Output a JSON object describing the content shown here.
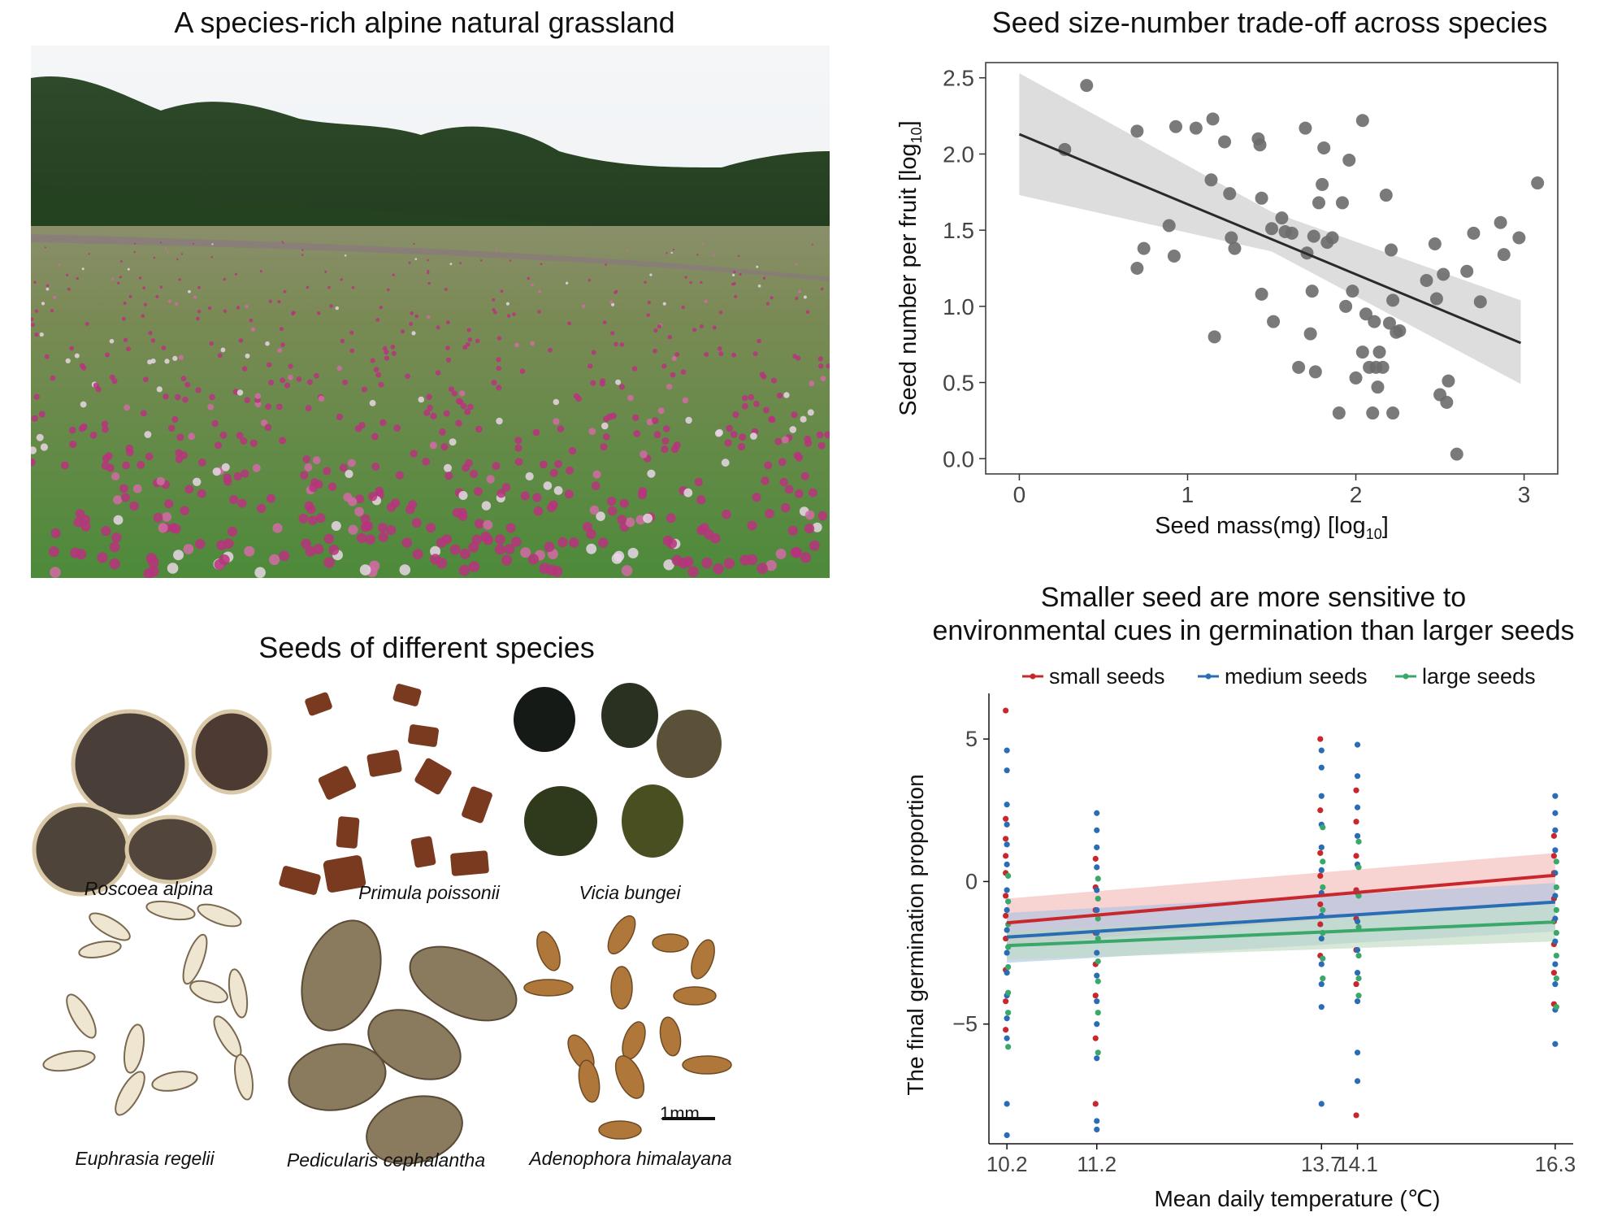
{
  "panels": {
    "grassland": {
      "title": "A species-rich alpine natural grassland"
    },
    "seeds": {
      "title": "Seeds of different species",
      "captions": [
        "Roscoea alpina",
        "Primula poissonii",
        "Vicia bungei",
        "Euphrasia regelii",
        "Pedicularis cephalantha",
        "Adenophora himalayana"
      ],
      "scale_bar_label": "1mm"
    }
  },
  "chart_data": [
    {
      "type": "scatter",
      "title": "Seed size-number trade-off across species",
      "xlabel_main": "Seed mass(mg) [log",
      "xlabel_sub": "10",
      "xlabel_end": "]",
      "ylabel_main": "Seed number per fruit [log",
      "ylabel_sub": "10",
      "ylabel_end": "]",
      "xlim": [
        -0.2,
        3.2
      ],
      "ylim": [
        -0.1,
        2.6
      ],
      "xticks": [
        0,
        1,
        2,
        3
      ],
      "xtick_labels": [
        "0",
        "1",
        "2",
        "3"
      ],
      "yticks": [
        0.0,
        0.5,
        1.0,
        1.5,
        2.0,
        2.5
      ],
      "ytick_labels": [
        "0.0",
        "0.5",
        "1.0",
        "1.5",
        "2.0",
        "2.5"
      ],
      "grid": false,
      "colors": {
        "points": "#6b6b6b",
        "fit": "#2a2a2a",
        "band": "#d9d9d9"
      },
      "fit": {
        "x0": 0.0,
        "y0": 2.13,
        "x1": 2.98,
        "y1": 0.76
      },
      "band": {
        "upper": [
          [
            0.0,
            2.53
          ],
          [
            1.5,
            1.62
          ],
          [
            2.98,
            1.04
          ]
        ],
        "lower": [
          [
            0.0,
            1.73
          ],
          [
            1.5,
            1.36
          ],
          [
            2.98,
            0.49
          ]
        ]
      },
      "points": [
        [
          0.27,
          2.03
        ],
        [
          0.4,
          2.45
        ],
        [
          0.7,
          2.15
        ],
        [
          0.7,
          1.25
        ],
        [
          0.74,
          1.38
        ],
        [
          0.89,
          1.53
        ],
        [
          0.93,
          2.18
        ],
        [
          0.92,
          1.33
        ],
        [
          1.05,
          2.17
        ],
        [
          1.15,
          2.23
        ],
        [
          1.14,
          1.83
        ],
        [
          1.16,
          0.8
        ],
        [
          1.22,
          2.08
        ],
        [
          1.25,
          1.74
        ],
        [
          1.26,
          1.45
        ],
        [
          1.28,
          1.38
        ],
        [
          1.42,
          2.1
        ],
        [
          1.43,
          2.06
        ],
        [
          1.44,
          1.71
        ],
        [
          1.44,
          1.08
        ],
        [
          1.5,
          1.51
        ],
        [
          1.51,
          0.9
        ],
        [
          1.56,
          1.58
        ],
        [
          1.58,
          1.49
        ],
        [
          1.62,
          1.48
        ],
        [
          1.66,
          0.6
        ],
        [
          1.7,
          2.17
        ],
        [
          1.71,
          1.35
        ],
        [
          1.73,
          0.82
        ],
        [
          1.74,
          1.1
        ],
        [
          1.75,
          1.46
        ],
        [
          1.76,
          0.57
        ],
        [
          1.78,
          1.68
        ],
        [
          1.8,
          1.8
        ],
        [
          1.81,
          2.04
        ],
        [
          1.83,
          1.42
        ],
        [
          1.86,
          1.45
        ],
        [
          1.9,
          0.3
        ],
        [
          1.92,
          1.68
        ],
        [
          1.94,
          1.0
        ],
        [
          1.96,
          1.96
        ],
        [
          1.98,
          1.1
        ],
        [
          2.0,
          0.53
        ],
        [
          2.04,
          2.22
        ],
        [
          2.04,
          0.7
        ],
        [
          2.06,
          0.95
        ],
        [
          2.08,
          0.6
        ],
        [
          2.1,
          0.3
        ],
        [
          2.11,
          0.9
        ],
        [
          2.12,
          0.6
        ],
        [
          2.13,
          0.47
        ],
        [
          2.14,
          0.7
        ],
        [
          2.16,
          0.6
        ],
        [
          2.18,
          1.73
        ],
        [
          2.2,
          0.89
        ],
        [
          2.21,
          1.37
        ],
        [
          2.22,
          0.3
        ],
        [
          2.22,
          1.04
        ],
        [
          2.24,
          0.83
        ],
        [
          2.26,
          0.84
        ],
        [
          2.42,
          1.17
        ],
        [
          2.47,
          1.41
        ],
        [
          2.48,
          1.05
        ],
        [
          2.5,
          0.42
        ],
        [
          2.52,
          1.21
        ],
        [
          2.54,
          0.37
        ],
        [
          2.55,
          0.51
        ],
        [
          2.6,
          0.03
        ],
        [
          2.66,
          1.23
        ],
        [
          2.7,
          1.48
        ],
        [
          2.74,
          1.03
        ],
        [
          2.86,
          1.55
        ],
        [
          2.88,
          1.34
        ],
        [
          2.97,
          1.45
        ],
        [
          3.08,
          1.81
        ]
      ]
    },
    {
      "type": "scatter",
      "title_line1": "Smaller seed are more sensitive to",
      "title_line2": "environmental cues in germination than larger seeds",
      "xlabel": "Mean daily temperature (℃)",
      "ylabel": "The final germination proportion",
      "xlim": [
        10.0,
        16.5
      ],
      "ylim": [
        -9.2,
        6.6
      ],
      "xticks": [
        10.2,
        11.2,
        13.7,
        14.1,
        16.3
      ],
      "xtick_labels": [
        "10.2",
        "11.2",
        "13.7",
        "14.1",
        "16.3"
      ],
      "yticks": [
        -5,
        0,
        5
      ],
      "ytick_labels": [
        "−5",
        "0",
        "5"
      ],
      "grid": false,
      "legend_position": "top",
      "series": [
        {
          "name": "small seeds",
          "color": "#c8282d",
          "band_color": "#f2b6b3",
          "fit": {
            "x0": 10.2,
            "y0": -1.45,
            "x1": 16.3,
            "y1": 0.22
          },
          "band": {
            "upper0": -0.6,
            "upper1": 1.0,
            "lower0": -2.25,
            "lower1": -0.65
          },
          "points": [
            [
              10.2,
              6.0
            ],
            [
              10.2,
              2.2
            ],
            [
              10.2,
              1.5
            ],
            [
              10.2,
              0.9
            ],
            [
              10.2,
              0.3
            ],
            [
              10.2,
              -0.5
            ],
            [
              10.2,
              -1.2
            ],
            [
              10.2,
              -2.0
            ],
            [
              10.2,
              -3.1
            ],
            [
              10.2,
              -4.2
            ],
            [
              10.2,
              -5.2
            ],
            [
              11.2,
              0.8
            ],
            [
              11.2,
              -0.2
            ],
            [
              11.2,
              -1.0
            ],
            [
              11.2,
              -1.8
            ],
            [
              11.2,
              -2.9
            ],
            [
              11.2,
              -4.0
            ],
            [
              11.2,
              -5.5
            ],
            [
              11.2,
              -7.8
            ],
            [
              13.7,
              5.0
            ],
            [
              13.7,
              2.5
            ],
            [
              13.7,
              1.0
            ],
            [
              13.7,
              0.2
            ],
            [
              13.7,
              -0.8
            ],
            [
              13.7,
              -1.5
            ],
            [
              13.7,
              -2.6
            ],
            [
              14.1,
              3.2
            ],
            [
              14.1,
              2.1
            ],
            [
              14.1,
              0.9
            ],
            [
              14.1,
              -0.3
            ],
            [
              14.1,
              -1.3
            ],
            [
              14.1,
              -2.4
            ],
            [
              14.1,
              -3.6
            ],
            [
              14.1,
              -8.2
            ],
            [
              16.3,
              1.6
            ],
            [
              16.3,
              0.9
            ],
            [
              16.3,
              0.3
            ],
            [
              16.3,
              -0.6
            ],
            [
              16.3,
              -1.4
            ],
            [
              16.3,
              -2.2
            ],
            [
              16.3,
              -3.2
            ],
            [
              16.3,
              -4.3
            ]
          ]
        },
        {
          "name": "medium seeds",
          "color": "#2a6db5",
          "band_color": "#a9c3e3",
          "fit": {
            "x0": 10.2,
            "y0": -1.95,
            "x1": 16.3,
            "y1": -0.72
          },
          "band": {
            "upper0": -1.1,
            "upper1": -0.05,
            "lower0": -2.85,
            "lower1": -1.75
          },
          "points": [
            [
              10.2,
              4.6
            ],
            [
              10.2,
              3.9
            ],
            [
              10.2,
              2.7
            ],
            [
              10.2,
              2.0
            ],
            [
              10.2,
              1.3
            ],
            [
              10.2,
              0.6
            ],
            [
              10.2,
              -0.3
            ],
            [
              10.2,
              -1.0
            ],
            [
              10.2,
              -1.7
            ],
            [
              10.2,
              -2.5
            ],
            [
              10.2,
              -3.2
            ],
            [
              10.2,
              -4.0
            ],
            [
              10.2,
              -4.8
            ],
            [
              10.2,
              -5.5
            ],
            [
              10.2,
              -7.8
            ],
            [
              10.2,
              -8.9
            ],
            [
              11.2,
              2.4
            ],
            [
              11.2,
              1.8
            ],
            [
              11.2,
              1.2
            ],
            [
              11.2,
              0.5
            ],
            [
              11.2,
              -0.3
            ],
            [
              11.2,
              -1.0
            ],
            [
              11.2,
              -1.8
            ],
            [
              11.2,
              -2.5
            ],
            [
              11.2,
              -3.3
            ],
            [
              11.2,
              -4.2
            ],
            [
              11.2,
              -5.0
            ],
            [
              11.2,
              -6.2
            ],
            [
              11.2,
              -8.4
            ],
            [
              11.2,
              -8.7
            ],
            [
              13.7,
              4.6
            ],
            [
              13.7,
              4.0
            ],
            [
              13.7,
              3.0
            ],
            [
              13.7,
              2.0
            ],
            [
              13.7,
              1.2
            ],
            [
              13.7,
              0.4
            ],
            [
              13.7,
              -0.4
            ],
            [
              13.7,
              -1.2
            ],
            [
              13.7,
              -2.0
            ],
            [
              13.7,
              -2.9
            ],
            [
              13.7,
              -3.6
            ],
            [
              13.7,
              -4.4
            ],
            [
              13.7,
              -7.8
            ],
            [
              14.1,
              4.8
            ],
            [
              14.1,
              3.7
            ],
            [
              14.1,
              2.6
            ],
            [
              14.1,
              1.6
            ],
            [
              14.1,
              0.6
            ],
            [
              14.1,
              -0.4
            ],
            [
              14.1,
              -1.4
            ],
            [
              14.1,
              -2.4
            ],
            [
              14.1,
              -3.2
            ],
            [
              14.1,
              -4.2
            ],
            [
              14.1,
              -6.0
            ],
            [
              14.1,
              -7.0
            ],
            [
              16.3,
              3.0
            ],
            [
              16.3,
              2.4
            ],
            [
              16.3,
              1.8
            ],
            [
              16.3,
              1.1
            ],
            [
              16.3,
              0.3
            ],
            [
              16.3,
              -0.5
            ],
            [
              16.3,
              -1.3
            ],
            [
              16.3,
              -2.1
            ],
            [
              16.3,
              -2.9
            ],
            [
              16.3,
              -3.6
            ],
            [
              16.3,
              -4.5
            ],
            [
              16.3,
              -5.7
            ]
          ]
        },
        {
          "name": "large seeds",
          "color": "#3aa86b",
          "band_color": "#bcd9bf",
          "fit": {
            "x0": 10.2,
            "y0": -2.25,
            "x1": 16.3,
            "y1": -1.42
          },
          "band": {
            "upper0": -1.75,
            "upper1": -0.75,
            "lower0": -2.75,
            "lower1": -2.1
          },
          "points": [
            [
              10.2,
              0.2
            ],
            [
              10.2,
              -0.7
            ],
            [
              10.2,
              -1.5
            ],
            [
              10.2,
              -2.3
            ],
            [
              10.2,
              -3.0
            ],
            [
              10.2,
              -3.9
            ],
            [
              10.2,
              -4.6
            ],
            [
              10.2,
              -5.8
            ],
            [
              11.2,
              0.1
            ],
            [
              11.2,
              -0.6
            ],
            [
              11.2,
              -1.3
            ],
            [
              11.2,
              -2.0
            ],
            [
              11.2,
              -2.8
            ],
            [
              11.2,
              -3.5
            ],
            [
              11.2,
              -4.6
            ],
            [
              11.2,
              -6.0
            ],
            [
              13.7,
              1.9
            ],
            [
              13.7,
              0.7
            ],
            [
              13.7,
              -0.2
            ],
            [
              13.7,
              -1.0
            ],
            [
              13.7,
              -1.8
            ],
            [
              13.7,
              -2.7
            ],
            [
              13.7,
              -3.4
            ],
            [
              14.1,
              1.4
            ],
            [
              14.1,
              0.5
            ],
            [
              14.1,
              -0.5
            ],
            [
              14.1,
              -1.6
            ],
            [
              14.1,
              -2.6
            ],
            [
              14.1,
              -3.4
            ],
            [
              14.1,
              -4.0
            ],
            [
              16.3,
              0.7
            ],
            [
              16.3,
              -0.2
            ],
            [
              16.3,
              -1.0
            ],
            [
              16.3,
              -1.8
            ],
            [
              16.3,
              -2.6
            ],
            [
              16.3,
              -3.4
            ],
            [
              16.3,
              -4.4
            ]
          ]
        }
      ]
    }
  ]
}
